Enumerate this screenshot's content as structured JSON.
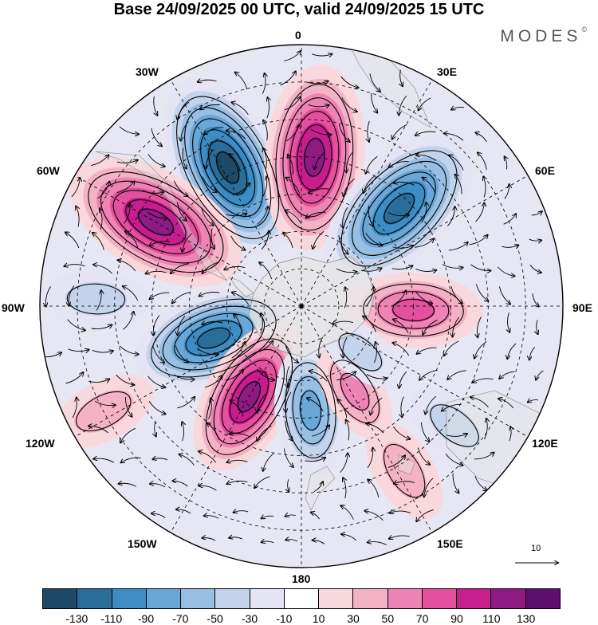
{
  "title": "Base 24/09/2025 00 UTC, valid 24/09/2025 15 UTC",
  "brand": {
    "name": "MODES",
    "mark": "©"
  },
  "longitude_labels": {
    "top": "0",
    "top_right": "30E",
    "right_upper": "60E",
    "right": "90E",
    "right_lower": "120E",
    "bottom_right": "150E",
    "bottom": "180",
    "bottom_left": "150W",
    "left_lower": "120W",
    "left": "90W",
    "left_upper": "60W",
    "top_left": "30W"
  },
  "reference_vector": {
    "label": "10"
  },
  "colorbar": {
    "colors": [
      "#1e4a6a",
      "#2a6d9a",
      "#3d8cc3",
      "#6aa6d6",
      "#97bee3",
      "#c4d3ec",
      "#e4e4f4",
      "#ffffff",
      "#f8d8dc",
      "#f4b2c6",
      "#ee84b4",
      "#e2509e",
      "#c61e8c",
      "#8e1a83",
      "#5e106e"
    ],
    "labels": [
      "-130",
      "-110",
      "-90",
      "-70",
      "-50",
      "-30",
      "-10",
      "10",
      "30",
      "50",
      "70",
      "90",
      "110",
      "130"
    ]
  },
  "anomaly_centers": [
    {
      "name": "neg-30w",
      "value": -130,
      "lon": -28,
      "lat": -48
    },
    {
      "name": "pos-0",
      "value": 125,
      "lon": 5,
      "lat": -50
    },
    {
      "name": "neg-40e",
      "value": -125,
      "lon": 45,
      "lat": -53
    },
    {
      "name": "pos-60w",
      "value": 125,
      "lon": -60,
      "lat": -45
    },
    {
      "name": "pos-90e",
      "value": 85,
      "lon": 92,
      "lat": -60
    },
    {
      "name": "neg-100w",
      "value": -115,
      "lon": -110,
      "lat": -65
    },
    {
      "name": "pos-145w",
      "value": 110,
      "lon": -150,
      "lat": -62
    },
    {
      "name": "neg-175e",
      "value": -80,
      "lon": 175,
      "lat": -62
    },
    {
      "name": "pos-150e",
      "value": 55,
      "lon": 148,
      "lat": -63
    },
    {
      "name": "neg-130e",
      "value": -45,
      "lon": 128,
      "lat": -70
    },
    {
      "name": "neg-120e-far",
      "value": -35,
      "lon": 128,
      "lat": -38
    },
    {
      "name": "pos-140e-far",
      "value": 40,
      "lon": 148,
      "lat": -38
    },
    {
      "name": "pos-120w-far",
      "value": 35,
      "lon": -118,
      "lat": -30
    },
    {
      "name": "neg-90w-far",
      "value": -35,
      "lon": -88,
      "lat": -35
    }
  ]
}
